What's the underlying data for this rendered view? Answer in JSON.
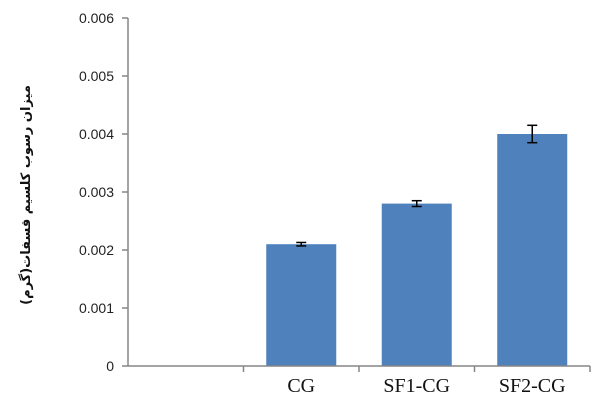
{
  "chart_data": {
    "type": "bar",
    "categories": [
      "",
      "CG",
      "SF1-CG",
      "SF2-CG"
    ],
    "values": [
      null,
      0.0021,
      0.0028,
      0.004
    ],
    "error": [
      null,
      3e-05,
      5e-05,
      0.00015
    ],
    "ylabel": "میزان رسوب کلسیم فسفات(گرم)",
    "xlabel": "",
    "title": "",
    "ylim": [
      0,
      0.006
    ],
    "yticks": [
      "0",
      "0.001",
      "0.002",
      "0.003",
      "0.004",
      "0.005",
      "0.006"
    ],
    "grid": false,
    "legend": "none",
    "bar_color": "#4f81bd",
    "axis_color": "#868686"
  }
}
